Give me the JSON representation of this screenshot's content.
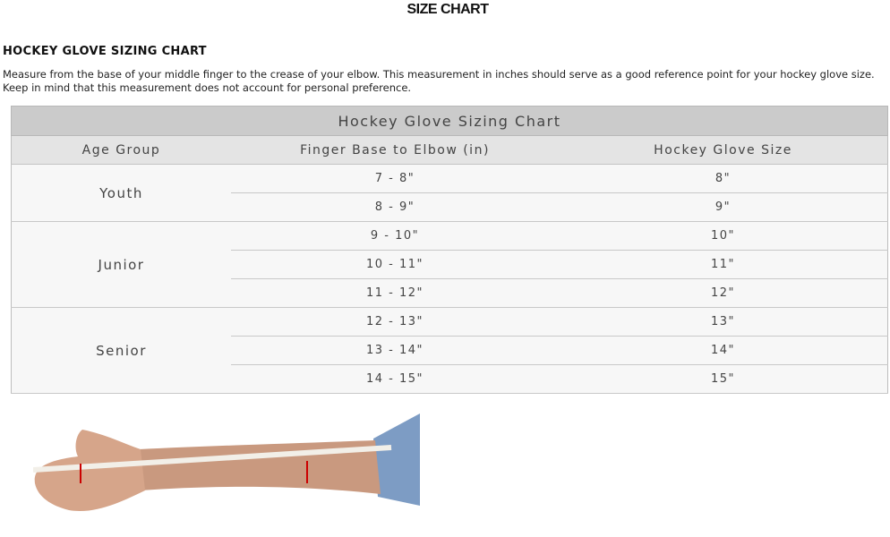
{
  "page_title": "SIZE CHART",
  "heading": "HOCKEY GLOVE SIZING CHART",
  "description": "Measure from the base of your middle finger to the crease of your elbow. This measurement in inches should serve as a good reference point for your hockey glove size. Keep in mind that this measurement does not account for personal preference.",
  "table": {
    "title": "Hockey Glove Sizing Chart",
    "headers": [
      "Age Group",
      "Finger Base to Elbow (in)",
      "Hockey Glove Size"
    ],
    "groups": [
      {
        "age": "Youth",
        "rows": [
          [
            "7 - 8\"",
            "8\""
          ],
          [
            "8 - 9\"",
            "9\""
          ]
        ]
      },
      {
        "age": "Junior",
        "rows": [
          [
            "9 - 10\"",
            "10\""
          ],
          [
            "10 - 11\"",
            "11\""
          ],
          [
            "11 - 12\"",
            "12\""
          ]
        ]
      },
      {
        "age": "Senior",
        "rows": [
          [
            "12 - 13\"",
            "13\""
          ],
          [
            "13 - 14\"",
            "14\""
          ],
          [
            "14 - 15\"",
            "15\""
          ]
        ]
      }
    ]
  }
}
